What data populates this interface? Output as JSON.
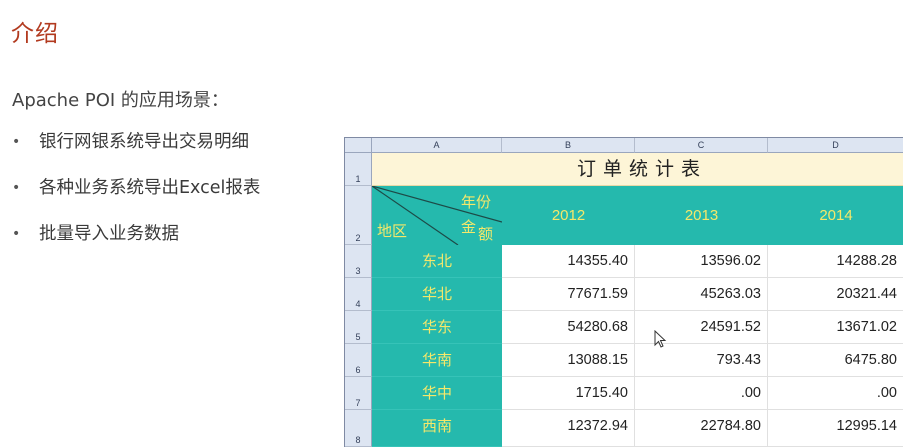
{
  "page": {
    "title": "介绍",
    "subtitle": "Apache POI 的应用场景：",
    "bullet_glyph": "•",
    "bullets": [
      "银行网银系统导出交易明细",
      "各种业务系统导出Excel报表",
      "批量导入业务数据"
    ]
  },
  "spreadsheet": {
    "column_headers": [
      "A",
      "B",
      "C",
      "D"
    ],
    "row_headers": [
      "1",
      "2",
      "3",
      "4",
      "5",
      "6",
      "7",
      "8"
    ],
    "table_title": "订单统计表",
    "header_top_right": "年份",
    "header_mid": "金",
    "header_mid2": "额",
    "header_bottom_left": "地区",
    "years": [
      "2012",
      "2013",
      "2014"
    ],
    "rows": [
      {
        "region": "东北",
        "values": [
          "14355.40",
          "13596.02",
          "14288.28"
        ]
      },
      {
        "region": "华北",
        "values": [
          "77671.59",
          "45263.03",
          "20321.44"
        ]
      },
      {
        "region": "华东",
        "values": [
          "54280.68",
          "24591.52",
          "13671.02"
        ]
      },
      {
        "region": "华南",
        "values": [
          "13088.15",
          "793.43",
          "6475.80"
        ]
      },
      {
        "region": "华中",
        "values": [
          "1715.40",
          ".00",
          ".00"
        ]
      },
      {
        "region": "西南",
        "values": [
          "12372.94",
          "22784.80",
          "12995.14"
        ]
      }
    ]
  },
  "colors": {
    "title": "#b23a1f",
    "teal_header": "#25b9ad",
    "yellow_text": "#f5e86a",
    "title_cell_bg": "#fdf5d7"
  }
}
